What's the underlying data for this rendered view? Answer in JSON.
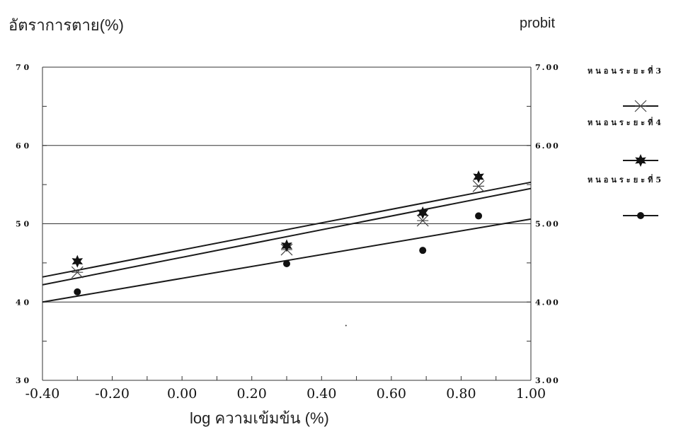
{
  "title": "อัตราการตาย(%)",
  "right_axis_title": "probit",
  "x_axis_title": "log   ความเข้มข้น (%)",
  "colors": {
    "line": "#1a1a1a",
    "grid": "#333333",
    "background": "#ffffff"
  },
  "chart_data": {
    "type": "scatter",
    "x_ticks": [
      "-0.40",
      "-0.20",
      "0.00",
      "0.20",
      "0.40",
      "0.60",
      "0.80",
      "1.00"
    ],
    "x_tick_values": [
      -0.4,
      -0.2,
      0.0,
      0.2,
      0.4,
      0.6,
      0.8,
      1.0
    ],
    "y_left_ticks": [
      "7 0",
      "6 0",
      "5 0",
      "4 0",
      "3 0"
    ],
    "y_left_tick_values": [
      70,
      60,
      50,
      40,
      30
    ],
    "y_right_ticks": [
      "7.00",
      "6.00",
      "5.00",
      "4.00",
      "3.00"
    ],
    "y_right_tick_values": [
      7.0,
      6.0,
      5.0,
      4.0,
      3.0
    ],
    "xlim": [
      -0.4,
      1.0
    ],
    "ylim": [
      3.0,
      7.0
    ],
    "grid_y": [
      4.0,
      5.0,
      6.0
    ],
    "legend_position": "right",
    "series": [
      {
        "name": "หนอนระยะที่3",
        "marker": "x",
        "points": [
          [
            -0.3,
            4.38
          ],
          [
            0.3,
            4.67
          ],
          [
            0.69,
            5.04
          ],
          [
            0.85,
            5.48
          ]
        ],
        "fit": [
          [
            -0.4,
            4.22
          ],
          [
            1.0,
            5.45
          ]
        ]
      },
      {
        "name": "หนอนระยะที่4",
        "marker": "star",
        "points": [
          [
            -0.3,
            4.52
          ],
          [
            0.3,
            4.72
          ],
          [
            0.69,
            5.14
          ],
          [
            0.85,
            5.6
          ]
        ],
        "fit": [
          [
            -0.4,
            4.32
          ],
          [
            1.0,
            5.53
          ]
        ]
      },
      {
        "name": "หนอนระยะที่5",
        "marker": "dot",
        "points": [
          [
            -0.3,
            4.13
          ],
          [
            0.3,
            4.49
          ],
          [
            0.69,
            4.66
          ],
          [
            0.85,
            5.1
          ]
        ],
        "fit": [
          [
            -0.4,
            4.0
          ],
          [
            1.0,
            5.06
          ]
        ]
      }
    ],
    "annotations": [
      [
        0.47,
        3.7
      ]
    ]
  }
}
